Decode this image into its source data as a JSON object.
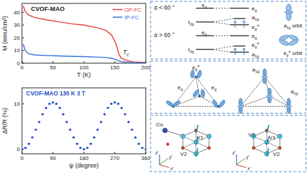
{
  "chart_data": [
    {
      "type": "line",
      "title": "CVOF-MAO",
      "x_label": "T (K)",
      "y_label": "M (emu/cm³)",
      "x": [
        2,
        5,
        10,
        20,
        40,
        60,
        80,
        100,
        120,
        135,
        145,
        152,
        156,
        160,
        170,
        180,
        200
      ],
      "series": [
        {
          "name": "OP-FC",
          "color": "#e53935",
          "values": [
            45,
            41,
            38,
            36,
            34,
            32.5,
            31,
            30,
            28,
            26,
            22,
            15,
            8,
            4,
            2,
            1,
            0.5
          ]
        },
        {
          "name": "IP-FC",
          "color": "#2f6fdc",
          "values": [
            15,
            10,
            7.5,
            6.5,
            6,
            5.7,
            5.4,
            5.1,
            4.8,
            4.5,
            3.8,
            2.8,
            2,
            1.3,
            0.7,
            0.4,
            0.3
          ]
        }
      ],
      "xlim": [
        0,
        200
      ],
      "ylim": [
        0,
        47
      ],
      "xticks": [
        0,
        50,
        100,
        150,
        200
      ],
      "yticks": [
        0,
        10,
        20,
        30,
        40
      ],
      "legend": "upper right",
      "annotations": [
        {
          "text": "T",
          "subscript": "c",
          "x": 163,
          "y": 7
        }
      ]
    },
    {
      "type": "scatter",
      "title": "CVOF-MAO 130 K 3 T",
      "x_label": "ψ (degree)",
      "y_label": "ΔR/R (%)",
      "x": [
        0,
        10,
        20,
        30,
        40,
        50,
        60,
        70,
        80,
        90,
        100,
        110,
        120,
        130,
        140,
        150,
        160,
        170,
        180,
        190,
        200,
        210,
        220,
        230,
        240,
        250,
        260,
        270,
        280,
        290,
        300,
        310,
        320,
        330,
        340,
        350,
        360
      ],
      "values": [
        0,
        0.3,
        1.2,
        2.6,
        4.3,
        6,
        7.7,
        9.1,
        10,
        10.3,
        10,
        9.1,
        7.7,
        6,
        4.3,
        2.6,
        1.2,
        0.3,
        0,
        0.3,
        1.2,
        2.6,
        4.3,
        6,
        7.7,
        9.1,
        10,
        10.3,
        10,
        9.1,
        7.7,
        6,
        4.3,
        2.6,
        1.2,
        0.3,
        0
      ],
      "color": "#1f4fc4",
      "marker": "circle",
      "xlim": [
        0,
        360
      ],
      "ylim": [
        -1,
        13.5
      ],
      "xticks": [
        0,
        90,
        180,
        270,
        360
      ],
      "yticks": [
        0,
        10
      ]
    }
  ],
  "diagram": {
    "levels": [
      {
        "condition": "α < 60 °",
        "left": [
          {
            "base": "e",
            "sub": "g"
          },
          {
            "base": "t",
            "sub": "2g"
          }
        ],
        "right": [
          {
            "base": "e",
            "sub": "g"
          },
          {
            "base": "a",
            "sub": "1g"
          },
          {
            "base": "e",
            "sub": "g",
            "sup": "π"
          }
        ],
        "orbit": {
          "base": "a",
          "sub": "1g",
          "suffix": " orbit"
        }
      },
      {
        "condition": "α > 60 °",
        "left": [
          {
            "base": "e",
            "sub": "g"
          },
          {
            "base": "t",
            "sub": "2g"
          }
        ],
        "right": [
          {
            "base": "e",
            "sub": "g"
          },
          {
            "base": "e",
            "sub": "g",
            "sup": "π"
          },
          {
            "base": "a",
            "sub": "1g"
          }
        ],
        "orbit": {
          "base": "e",
          "sub": "g",
          "sup": "π",
          "suffix": " orbit"
        }
      }
    ],
    "clusters": [
      {
        "labels": [
          {
            "base": "e",
            "sub": "g",
            "sup": "π"
          },
          {
            "base": "e",
            "sub": "g"
          },
          {
            "base": "e",
            "sub": "g"
          }
        ]
      },
      {
        "labels": [
          {
            "base": "a",
            "sub": "1g"
          },
          {
            "base": "a",
            "sub": "1g"
          }
        ]
      }
    ],
    "structures": [
      {
        "atoms": [
          "Co",
          "V1",
          "V2"
        ],
        "axes": [
          "x'",
          "y'",
          "z'"
        ]
      },
      {
        "atoms": [
          "V2",
          "V1",
          "V2"
        ],
        "axes": [
          "x'",
          "y'",
          "z'"
        ]
      }
    ]
  }
}
